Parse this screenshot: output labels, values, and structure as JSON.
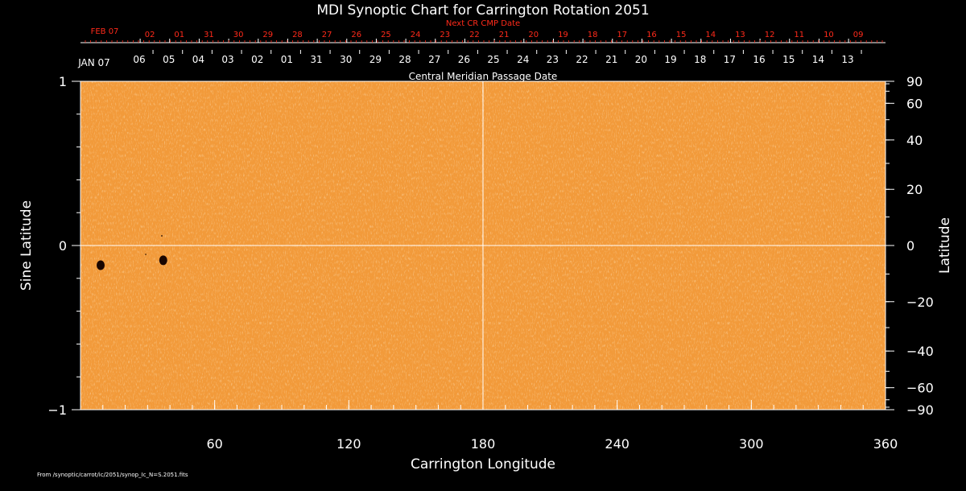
{
  "chart_data": {
    "type": "heatmap",
    "title": "MDI Synoptic Chart for Carrington Rotation 2051",
    "xlabel": "Carrington Longitude",
    "ylabel": "Sine Latitude",
    "ylabel_right": "Latitude",
    "xlim": [
      0,
      360
    ],
    "ylim": [
      -1,
      1
    ],
    "x_ticks": [
      60,
      120,
      180,
      240,
      300,
      360
    ],
    "x_minor_step": 10,
    "y_ticks": [
      {
        "value": 1,
        "label": "1"
      },
      {
        "value": 0,
        "label": "0"
      },
      {
        "value": -1,
        "label": "−1"
      }
    ],
    "y_minor_step": 0.2,
    "right_ticks": [
      {
        "value": 90,
        "label": "90"
      },
      {
        "value": 60,
        "label": "60"
      },
      {
        "value": 40,
        "label": "40"
      },
      {
        "value": 20,
        "label": "20"
      },
      {
        "value": 0,
        "label": "0"
      },
      {
        "value": -20,
        "label": "−20"
      },
      {
        "value": -40,
        "label": "−40"
      },
      {
        "value": -60,
        "label": "−60"
      },
      {
        "value": -90,
        "label": "−90"
      }
    ],
    "right_minor_step": 10,
    "cmp_axis": {
      "label": "Central Meridian Passage Date",
      "start_label": "JAN 07",
      "dates": [
        "06",
        "05",
        "04",
        "03",
        "02",
        "01",
        "31",
        "30",
        "29",
        "28",
        "27",
        "26",
        "25",
        "24",
        "23",
        "22",
        "21",
        "20",
        "19",
        "18",
        "17",
        "16",
        "15",
        "14",
        "13"
      ],
      "first_longitude": 26.3,
      "step": 13.2
    },
    "next_cmp_axis": {
      "label": "Next CR CMP Date",
      "start_label": "FEB 07",
      "dates": [
        "02",
        "01",
        "31",
        "30",
        "29",
        "28",
        "27",
        "26",
        "25",
        "24",
        "23",
        "22",
        "21",
        "20",
        "19",
        "18",
        "17",
        "16",
        "15",
        "14",
        "13",
        "12",
        "11",
        "10",
        "09"
      ],
      "first_longitude": 31.0,
      "step": 13.2
    },
    "features": [
      {
        "name": "sunspot",
        "longitude": 9,
        "sine_latitude": -0.12
      },
      {
        "name": "sunspot",
        "longitude": 37,
        "sine_latitude": -0.09
      }
    ],
    "colors": {
      "background": "#f29a3a",
      "speckle": "#ffcf8f",
      "sunspot": "#1a0600",
      "grid": "#ffffff",
      "next_axis": "#ff2a1a"
    },
    "grid_lines": {
      "x": [
        180
      ],
      "y": [
        0
      ]
    },
    "source_note": "From /synoptic/carrot/ic/2051/synop_Ic_N=S.2051.fits"
  }
}
